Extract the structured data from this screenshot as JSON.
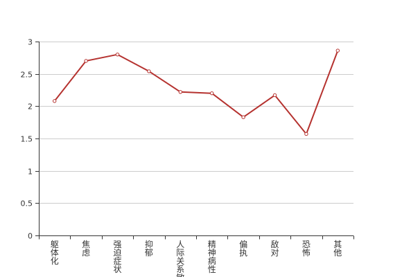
{
  "chart_data": {
    "type": "line",
    "title": "",
    "xlabel": "",
    "ylabel": "",
    "categories": [
      "躯体化",
      "焦虑",
      "强迫症状",
      "抑郁",
      "人际关系敏感",
      "精神病性",
      "偏执",
      "敌对",
      "恐怖",
      "其他"
    ],
    "series": [
      {
        "values": [
          2.08,
          2.7,
          2.8,
          2.54,
          2.22,
          2.2,
          1.83,
          2.17,
          1.57,
          2.86
        ]
      }
    ],
    "ylim": [
      0,
      3
    ],
    "yticks": [
      0,
      0.5,
      1,
      1.5,
      2,
      2.5,
      3
    ],
    "ytick_labels": [
      "0",
      "0.5",
      "1",
      "1.5",
      "2",
      "2.5",
      "3"
    ],
    "grid": true,
    "legend": "none",
    "colors": {
      "line": "#b5322f",
      "grid": "#cccccc",
      "axis": "#333333",
      "marker_fill": "#ffffff"
    }
  }
}
